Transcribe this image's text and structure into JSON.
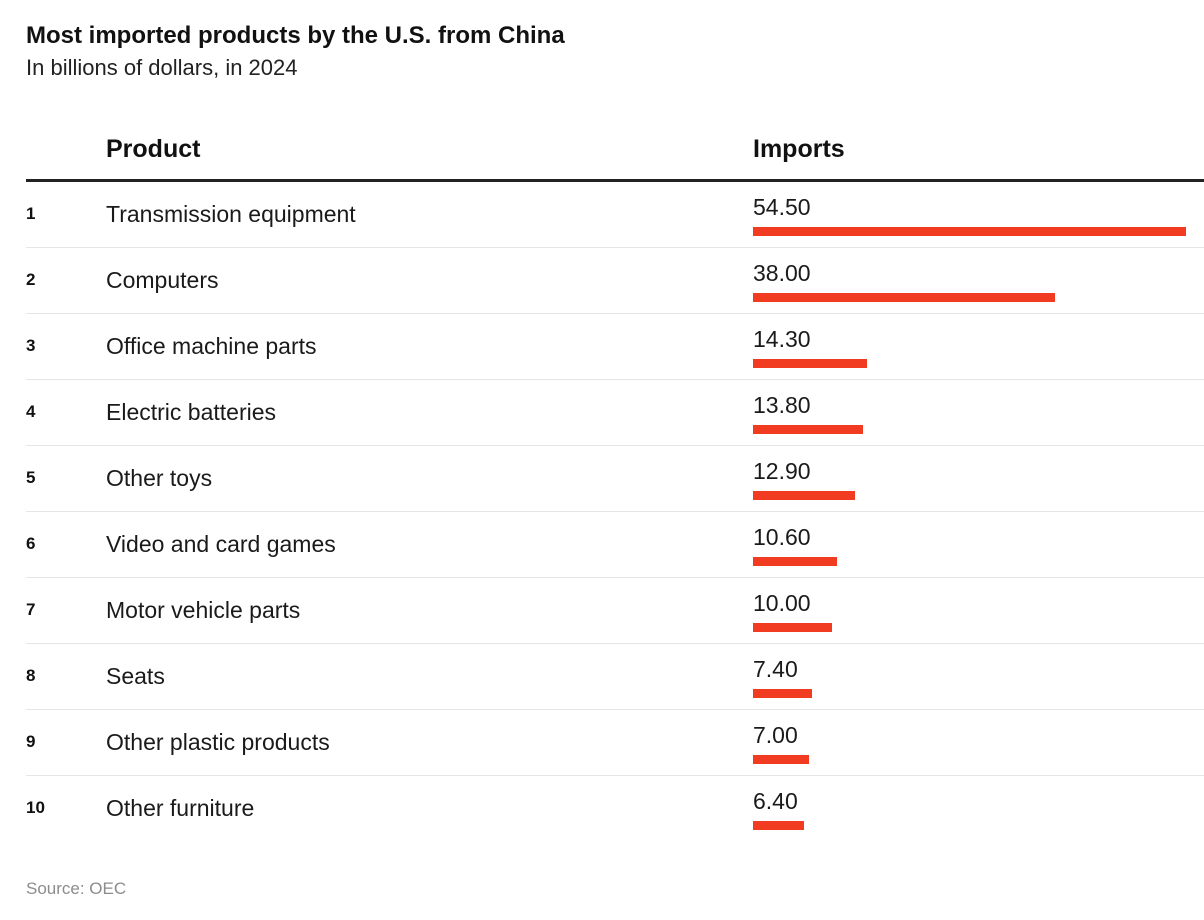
{
  "header": {
    "title": "Most imported products by the U.S. from China",
    "subtitle": "In billions of dollars, in 2024"
  },
  "columns": {
    "product": "Product",
    "imports": "Imports"
  },
  "footer": {
    "source": "Source: OEC"
  },
  "colors": {
    "bar": "#f23c22",
    "rule": "#222222",
    "divider": "#e6e6e6"
  },
  "chart_data": {
    "type": "table",
    "title": "Most imported products by the U.S. from China",
    "subtitle": "In billions of dollars, in 2024",
    "columns": [
      "Product",
      "Imports"
    ],
    "max_value": 54.5,
    "rows": [
      {
        "rank": "1",
        "product": "Transmission equipment",
        "display": "54.50",
        "value": 54.5
      },
      {
        "rank": "2",
        "product": "Computers",
        "display": "38.00",
        "value": 38.0
      },
      {
        "rank": "3",
        "product": "Office machine parts",
        "display": "14.30",
        "value": 14.3
      },
      {
        "rank": "4",
        "product": "Electric batteries",
        "display": "13.80",
        "value": 13.8
      },
      {
        "rank": "5",
        "product": "Other toys",
        "display": "12.90",
        "value": 12.9
      },
      {
        "rank": "6",
        "product": "Video and card games",
        "display": "10.60",
        "value": 10.6
      },
      {
        "rank": "7",
        "product": "Motor vehicle parts",
        "display": "10.00",
        "value": 10.0
      },
      {
        "rank": "8",
        "product": "Seats",
        "display": "7.40",
        "value": 7.4
      },
      {
        "rank": "9",
        "product": "Other plastic products",
        "display": "7.00",
        "value": 7.0
      },
      {
        "rank": "10",
        "product": "Other furniture",
        "display": "6.40",
        "value": 6.4
      }
    ],
    "source": "Source: OEC"
  }
}
